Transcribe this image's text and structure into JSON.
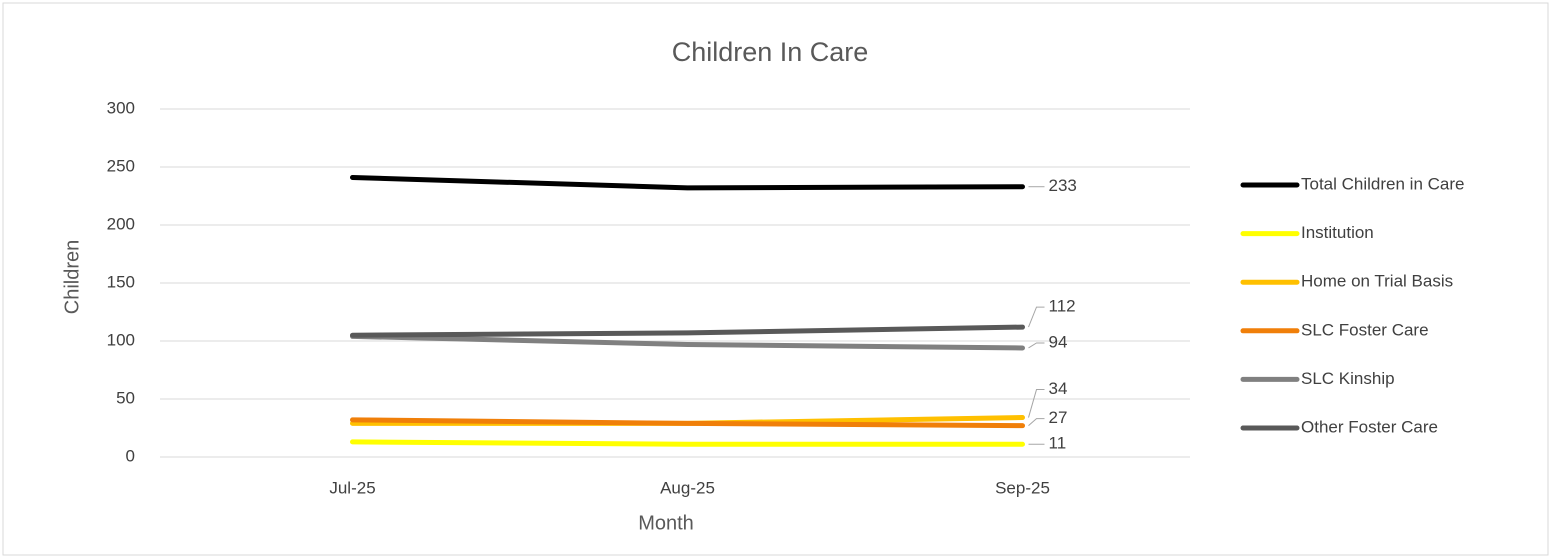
{
  "chart_data": {
    "type": "line",
    "title": "Children In Care",
    "xlabel": "Month",
    "ylabel": "Children",
    "categories": [
      "Jul-25",
      "Aug-25",
      "Sep-25"
    ],
    "series": [
      {
        "name": "Total Children in Care",
        "color": "#000000",
        "values": [
          241,
          232,
          233
        ]
      },
      {
        "name": "Institution",
        "color": "#ffff00",
        "values": [
          13,
          11,
          11
        ]
      },
      {
        "name": "Home on Trial Basis",
        "color": "#ffc000",
        "values": [
          29,
          29,
          34
        ]
      },
      {
        "name": "SLC Foster Care",
        "color": "#f07f09",
        "values": [
          32,
          29,
          27
        ]
      },
      {
        "name": "SLC Kinship",
        "color": "#808080",
        "values": [
          104,
          97,
          94
        ]
      },
      {
        "name": "Other Foster Care",
        "color": "#595959",
        "values": [
          105,
          107,
          112
        ]
      }
    ],
    "ylim": [
      0,
      300
    ],
    "yticks": [
      0,
      50,
      100,
      150,
      200,
      250,
      300
    ],
    "grid": true,
    "legend": "right"
  }
}
